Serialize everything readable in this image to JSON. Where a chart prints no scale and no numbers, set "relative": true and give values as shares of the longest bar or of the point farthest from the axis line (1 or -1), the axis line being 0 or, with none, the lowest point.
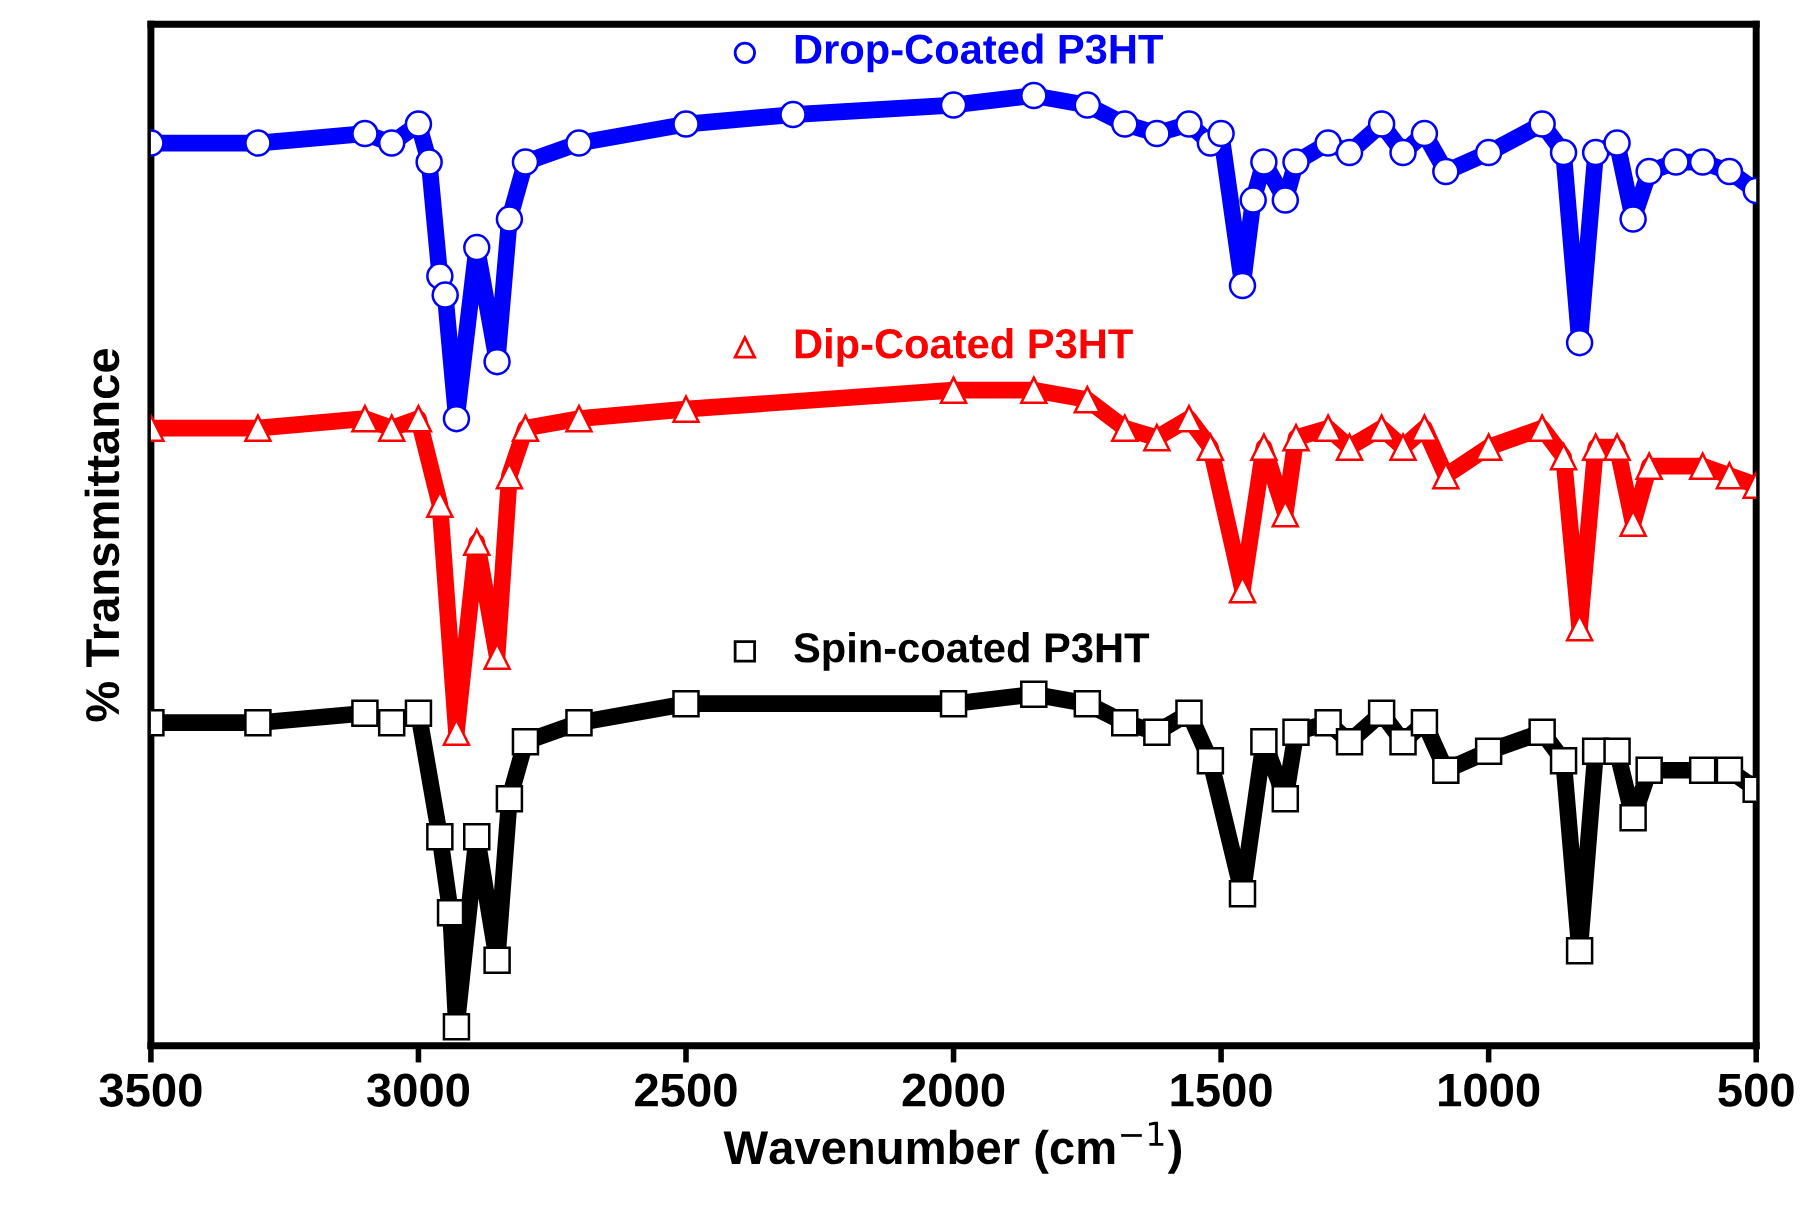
{
  "chart_data": {
    "type": "line",
    "relative": true,
    "xlabel": "Wavenumber (cm$^{−1}$)",
    "ylabel": "% Transmittance",
    "xlim": [
      3500,
      500
    ],
    "xticks": [
      3500,
      3000,
      2500,
      2000,
      1500,
      1000,
      500
    ],
    "grid": false,
    "legend": "top",
    "line_style": "solid",
    "series": [
      {
        "name": "Drop-Coated P3HT",
        "color": "#0000ff",
        "marker": "circle",
        "x": [
          3500,
          3300,
          3100,
          3050,
          3000,
          2980,
          2960,
          2950,
          2929,
          2891,
          2853,
          2830,
          2800,
          2700,
          2500,
          2300,
          2000,
          1850,
          1750,
          1680,
          1620,
          1560,
          1520,
          1500,
          1460,
          1440,
          1420,
          1380,
          1360,
          1300,
          1260,
          1200,
          1160,
          1120,
          1080,
          1000,
          900,
          860,
          830,
          800,
          760,
          730,
          700,
          650,
          600,
          550,
          500
        ],
        "values": [
          0.95,
          0.95,
          0.96,
          0.95,
          0.97,
          0.93,
          0.81,
          0.79,
          0.66,
          0.84,
          0.72,
          0.87,
          0.93,
          0.95,
          0.97,
          0.98,
          0.99,
          1.0,
          0.99,
          0.97,
          0.96,
          0.97,
          0.95,
          0.96,
          0.8,
          0.89,
          0.93,
          0.89,
          0.93,
          0.95,
          0.94,
          0.97,
          0.94,
          0.96,
          0.92,
          0.94,
          0.97,
          0.94,
          0.74,
          0.94,
          0.95,
          0.87,
          0.92,
          0.93,
          0.93,
          0.92,
          0.9
        ]
      },
      {
        "name": "Dip-Coated P3HT",
        "color": "#ff0000",
        "marker": "triangle",
        "x": [
          3500,
          3300,
          3100,
          3050,
          3000,
          2960,
          2929,
          2891,
          2853,
          2830,
          2800,
          2700,
          2500,
          2000,
          1850,
          1750,
          1680,
          1620,
          1560,
          1520,
          1460,
          1420,
          1380,
          1360,
          1300,
          1260,
          1200,
          1160,
          1120,
          1080,
          1000,
          900,
          860,
          830,
          800,
          760,
          730,
          700,
          600,
          550,
          500
        ],
        "values": [
          0.65,
          0.65,
          0.66,
          0.65,
          0.66,
          0.57,
          0.33,
          0.53,
          0.41,
          0.6,
          0.65,
          0.66,
          0.67,
          0.69,
          0.69,
          0.68,
          0.65,
          0.64,
          0.66,
          0.63,
          0.48,
          0.63,
          0.56,
          0.64,
          0.65,
          0.63,
          0.65,
          0.63,
          0.65,
          0.6,
          0.63,
          0.65,
          0.62,
          0.44,
          0.63,
          0.63,
          0.55,
          0.61,
          0.61,
          0.6,
          0.59
        ]
      },
      {
        "name": "Spin-coated P3HT",
        "color": "#000000",
        "marker": "square",
        "x": [
          3500,
          3300,
          3100,
          3050,
          3000,
          2960,
          2940,
          2929,
          2891,
          2853,
          2830,
          2800,
          2700,
          2500,
          2000,
          1850,
          1750,
          1680,
          1620,
          1560,
          1520,
          1460,
          1420,
          1380,
          1360,
          1300,
          1260,
          1200,
          1160,
          1120,
          1080,
          1000,
          900,
          860,
          830,
          800,
          760,
          730,
          700,
          600,
          550,
          500
        ],
        "values": [
          0.34,
          0.34,
          0.35,
          0.34,
          0.35,
          0.22,
          0.14,
          0.02,
          0.22,
          0.09,
          0.26,
          0.32,
          0.34,
          0.36,
          0.36,
          0.37,
          0.36,
          0.34,
          0.33,
          0.35,
          0.3,
          0.16,
          0.32,
          0.26,
          0.33,
          0.34,
          0.32,
          0.35,
          0.32,
          0.34,
          0.29,
          0.31,
          0.33,
          0.3,
          0.1,
          0.31,
          0.31,
          0.24,
          0.29,
          0.29,
          0.29,
          0.27
        ]
      }
    ]
  }
}
